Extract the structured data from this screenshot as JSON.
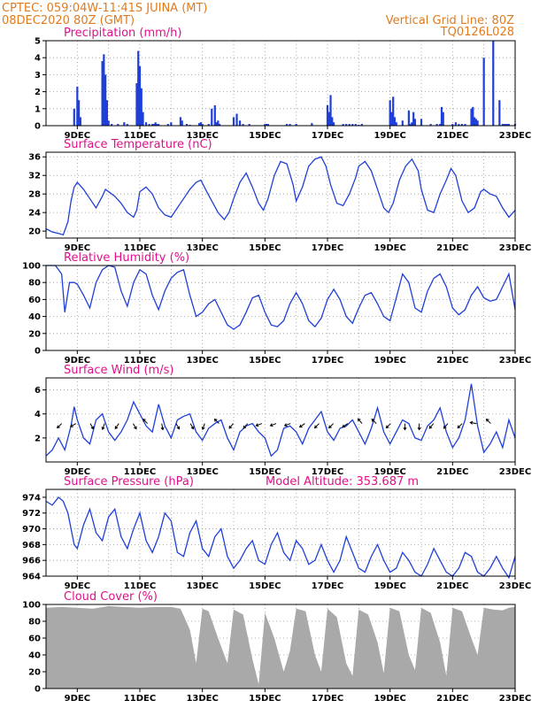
{
  "header": {
    "line1": "CPTEC:    059:04W-11:41S   JUINA (MT)",
    "line2": "08DEC2020  80Z (GMT)",
    "grid_note": "Vertical Grid Line: 80Z",
    "code": "TQ0126L028",
    "altitude": "Model Altitude:  353.687 m"
  },
  "colors": {
    "header": "#e07b1e",
    "title": "#e0108a",
    "line": "#1f3fd8",
    "bar": "#1f3fd8",
    "cloud": "#a9a9a9"
  },
  "chart_data": [
    {
      "type": "bar",
      "title": "Precipitation  (mm/h)",
      "x_ticks": [
        "9DEC",
        "11DEC",
        "13DEC",
        "15DEC",
        "17DEC",
        "19DEC",
        "21DEC",
        "23DEC"
      ],
      "x_range_days": [
        0,
        15
      ],
      "ylim": [
        0,
        5
      ],
      "y_ticks": [
        "0",
        "1",
        "2",
        "3",
        "4",
        "5"
      ],
      "x": [
        0.9,
        1.0,
        1.05,
        1.1,
        1.8,
        1.85,
        1.9,
        1.95,
        2.0,
        2.1,
        2.3,
        2.5,
        2.6,
        2.9,
        2.95,
        3.0,
        3.05,
        3.1,
        3.2,
        3.3,
        3.4,
        3.45,
        3.5,
        3.55,
        3.6,
        3.9,
        4.0,
        4.3,
        4.35,
        4.5,
        4.6,
        4.9,
        4.95,
        5.0,
        5.2,
        5.3,
        5.4,
        5.45,
        5.5,
        5.55,
        6.0,
        6.1,
        6.2,
        6.3,
        6.5,
        7.0,
        7.05,
        7.1,
        7.7,
        7.8,
        8.0,
        8.5,
        9.0,
        9.05,
        9.1,
        9.15,
        9.2,
        9.5,
        9.6,
        9.7,
        9.8,
        9.9,
        10.0,
        10.1,
        11.0,
        11.05,
        11.1,
        11.15,
        11.2,
        11.4,
        11.6,
        11.65,
        11.7,
        11.75,
        11.8,
        12.0,
        12.3,
        12.5,
        12.6,
        12.65,
        12.7,
        13.0,
        13.1,
        13.2,
        13.3,
        13.4,
        13.6,
        13.65,
        13.7,
        13.75,
        13.8,
        14.0,
        14.3,
        14.5,
        14.6,
        14.65,
        14.7,
        14.75,
        14.8,
        15.0
      ],
      "values": [
        1.0,
        2.3,
        1.5,
        0.5,
        3.8,
        4.2,
        3.0,
        1.5,
        0.3,
        0.1,
        0.1,
        0.2,
        0.1,
        2.5,
        4.4,
        3.5,
        2.2,
        0.8,
        0.2,
        0.1,
        0.1,
        0.1,
        0.2,
        0.1,
        0.1,
        0.1,
        0.2,
        0.5,
        0.3,
        0.1,
        0.05,
        0.15,
        0.2,
        0.1,
        0.1,
        1.0,
        1.2,
        0.2,
        0.3,
        0.1,
        0.5,
        0.7,
        0.3,
        0.1,
        0.1,
        0.1,
        0.1,
        0.1,
        0.1,
        0.1,
        0.1,
        0.15,
        1.2,
        0.8,
        1.8,
        0.5,
        0.2,
        0.1,
        0.1,
        0.1,
        0.1,
        0.1,
        0.05,
        0.1,
        1.5,
        0.8,
        1.7,
        0.5,
        0.2,
        0.3,
        0.9,
        0.1,
        0.2,
        0.8,
        0.4,
        0.4,
        0.1,
        0.1,
        0.1,
        1.1,
        0.8,
        0.1,
        0.2,
        0.1,
        0.1,
        0.1,
        1.0,
        1.1,
        0.5,
        0.4,
        0.3,
        4.0,
        5.0,
        1.5,
        0.1,
        0.1,
        0.1,
        0.1,
        0.1,
        0.1
      ]
    },
    {
      "type": "line",
      "title": "Surface Temperature  (nC)",
      "x_ticks": [
        "9DEC",
        "11DEC",
        "13DEC",
        "15DEC",
        "17DEC",
        "19DEC",
        "21DEC",
        "23DEC"
      ],
      "x_range_days": [
        0,
        15
      ],
      "ylim": [
        18.5,
        37
      ],
      "y_ticks": [
        "20",
        "24",
        "28",
        "32",
        "36"
      ],
      "x": [
        0,
        0.2,
        0.4,
        0.55,
        0.7,
        0.8,
        0.9,
        1.0,
        1.2,
        1.4,
        1.6,
        1.8,
        1.9,
        2.0,
        2.2,
        2.4,
        2.6,
        2.8,
        2.9,
        3.0,
        3.2,
        3.4,
        3.6,
        3.8,
        4.0,
        4.2,
        4.4,
        4.6,
        4.8,
        4.95,
        5.1,
        5.3,
        5.5,
        5.7,
        5.85,
        6.0,
        6.2,
        6.4,
        6.5,
        6.6,
        6.8,
        6.95,
        7.1,
        7.3,
        7.5,
        7.7,
        7.9,
        8.0,
        8.2,
        8.4,
        8.6,
        8.8,
        8.95,
        9.1,
        9.3,
        9.5,
        9.7,
        9.9,
        10.0,
        10.2,
        10.4,
        10.6,
        10.8,
        10.95,
        11.1,
        11.3,
        11.5,
        11.7,
        11.9,
        12.0,
        12.2,
        12.4,
        12.6,
        12.8,
        12.95,
        13.1,
        13.3,
        13.5,
        13.7,
        13.9,
        14.0,
        14.2,
        14.4,
        14.6,
        14.8,
        15.0
      ],
      "values": [
        20.5,
        19.8,
        19.5,
        19.2,
        22.0,
        26.5,
        29.5,
        30.5,
        29.0,
        27.0,
        25.0,
        27.5,
        29.0,
        28.5,
        27.5,
        26.0,
        24.0,
        23.0,
        24.5,
        28.5,
        29.5,
        28.0,
        25.0,
        23.5,
        23.0,
        25.0,
        27.0,
        29.0,
        30.5,
        31.0,
        29.0,
        26.5,
        24.0,
        22.5,
        24.0,
        27.0,
        30.5,
        32.5,
        31.0,
        29.5,
        26.0,
        24.5,
        27.0,
        32.0,
        35.0,
        34.5,
        30.0,
        26.5,
        29.5,
        34.0,
        35.5,
        36.0,
        34.0,
        30.0,
        26.0,
        25.5,
        28.0,
        31.5,
        34.0,
        35.0,
        33.0,
        29.0,
        25.0,
        24.0,
        26.0,
        31.0,
        34.0,
        35.5,
        33.0,
        29.0,
        24.5,
        24.0,
        28.0,
        31.0,
        33.5,
        32.0,
        26.5,
        24.0,
        25.0,
        28.5,
        29.0,
        28.0,
        27.5,
        25.0,
        23.0,
        24.5
      ]
    },
    {
      "type": "line",
      "title": "Relative Humidity  (%)",
      "x_ticks": [
        "9DEC",
        "11DEC",
        "13DEC",
        "15DEC",
        "17DEC",
        "19DEC",
        "21DEC",
        "23DEC"
      ],
      "x_range_days": [
        0,
        15
      ],
      "ylim": [
        0,
        100
      ],
      "y_ticks": [
        "0",
        "20",
        "40",
        "60",
        "80",
        "100"
      ],
      "x": [
        0,
        0.3,
        0.5,
        0.6,
        0.75,
        0.9,
        1.0,
        1.2,
        1.4,
        1.6,
        1.8,
        2.0,
        2.2,
        2.4,
        2.6,
        2.8,
        3.0,
        3.2,
        3.4,
        3.6,
        3.8,
        4.0,
        4.2,
        4.4,
        4.6,
        4.8,
        5.0,
        5.2,
        5.4,
        5.6,
        5.8,
        6.0,
        6.2,
        6.4,
        6.6,
        6.8,
        7.0,
        7.2,
        7.4,
        7.6,
        7.8,
        8.0,
        8.2,
        8.4,
        8.6,
        8.8,
        9.0,
        9.2,
        9.4,
        9.6,
        9.8,
        10.0,
        10.2,
        10.4,
        10.6,
        10.8,
        11.0,
        11.2,
        11.4,
        11.6,
        11.8,
        12.0,
        12.2,
        12.4,
        12.6,
        12.8,
        13.0,
        13.2,
        13.4,
        13.6,
        13.8,
        14.0,
        14.2,
        14.4,
        14.6,
        14.8,
        15.0
      ],
      "values": [
        100,
        100,
        90,
        45,
        80,
        80,
        78,
        65,
        50,
        80,
        95,
        100,
        98,
        70,
        52,
        80,
        95,
        90,
        65,
        48,
        70,
        85,
        92,
        95,
        65,
        40,
        45,
        55,
        60,
        45,
        30,
        25,
        30,
        45,
        62,
        65,
        45,
        30,
        28,
        35,
        55,
        68,
        55,
        35,
        28,
        38,
        60,
        72,
        60,
        40,
        32,
        50,
        65,
        68,
        55,
        40,
        35,
        62,
        90,
        80,
        50,
        45,
        70,
        85,
        90,
        75,
        50,
        42,
        48,
        65,
        75,
        62,
        58,
        60,
        75,
        90,
        48
      ]
    },
    {
      "type": "line",
      "title": "Surface  Wind  (m/s)",
      "x_ticks": [
        "9DEC",
        "11DEC",
        "13DEC",
        "15DEC",
        "17DEC",
        "19DEC",
        "21DEC",
        "23DEC"
      ],
      "x_range_days": [
        0,
        15
      ],
      "ylim": [
        0,
        7
      ],
      "y_ticks": [
        "2",
        "4",
        "6"
      ],
      "x": [
        0,
        0.2,
        0.4,
        0.6,
        0.8,
        0.9,
        1.0,
        1.2,
        1.4,
        1.6,
        1.8,
        2.0,
        2.2,
        2.4,
        2.6,
        2.8,
        3.0,
        3.2,
        3.4,
        3.6,
        3.8,
        4.0,
        4.2,
        4.4,
        4.6,
        4.8,
        5.0,
        5.2,
        5.4,
        5.6,
        5.8,
        6.0,
        6.2,
        6.4,
        6.6,
        6.8,
        7.0,
        7.2,
        7.4,
        7.6,
        7.8,
        8.0,
        8.2,
        8.4,
        8.6,
        8.8,
        9.0,
        9.2,
        9.4,
        9.6,
        9.8,
        10.0,
        10.2,
        10.4,
        10.6,
        10.8,
        11.0,
        11.2,
        11.4,
        11.6,
        11.8,
        12.0,
        12.2,
        12.4,
        12.6,
        12.8,
        13.0,
        13.2,
        13.4,
        13.6,
        13.8,
        14.0,
        14.2,
        14.4,
        14.6,
        14.8,
        15.0
      ],
      "values": [
        0.5,
        1.0,
        2.0,
        1.0,
        3.0,
        4.6,
        3.5,
        2.0,
        1.5,
        3.5,
        4.0,
        2.5,
        1.8,
        2.5,
        3.5,
        5.0,
        4.0,
        3.0,
        2.5,
        4.8,
        3.0,
        2.0,
        3.5,
        3.8,
        4.0,
        2.5,
        1.8,
        2.8,
        3.2,
        3.5,
        2.0,
        1.0,
        2.5,
        3.0,
        3.2,
        2.5,
        2.0,
        0.5,
        1.0,
        2.8,
        3.0,
        2.5,
        1.5,
        2.8,
        3.5,
        4.2,
        2.5,
        1.8,
        2.8,
        3.0,
        3.5,
        2.5,
        1.5,
        2.8,
        4.5,
        2.5,
        1.5,
        2.5,
        3.5,
        3.2,
        2.0,
        1.8,
        3.0,
        3.5,
        4.5,
        2.5,
        1.2,
        2.0,
        3.5,
        6.5,
        3.0,
        0.8,
        1.5,
        2.5,
        1.2,
        3.5,
        2.0
      ],
      "arrows_dir_deg": [
        225,
        210,
        300,
        250,
        235,
        300,
        135,
        280,
        300,
        300,
        250,
        135,
        230,
        230,
        200,
        200,
        200,
        215,
        225,
        225,
        215,
        130,
        135,
        225,
        270,
        270,
        230,
        230,
        225,
        170,
        135
      ]
    },
    {
      "type": "line",
      "title": "Surface  Pressure  (hPa)",
      "x_ticks": [
        "9DEC",
        "11DEC",
        "13DEC",
        "15DEC",
        "17DEC",
        "19DEC",
        "21DEC",
        "23DEC"
      ],
      "x_range_days": [
        0,
        15
      ],
      "ylim": [
        964,
        975
      ],
      "y_ticks": [
        "964",
        "966",
        "968",
        "970",
        "972",
        "974"
      ],
      "x": [
        0,
        0.2,
        0.4,
        0.55,
        0.7,
        0.9,
        1.0,
        1.2,
        1.4,
        1.6,
        1.8,
        2.0,
        2.2,
        2.4,
        2.6,
        2.8,
        3.0,
        3.2,
        3.4,
        3.6,
        3.8,
        4.0,
        4.2,
        4.4,
        4.6,
        4.8,
        5.0,
        5.2,
        5.4,
        5.6,
        5.8,
        6.0,
        6.2,
        6.4,
        6.6,
        6.8,
        7.0,
        7.2,
        7.4,
        7.6,
        7.8,
        8.0,
        8.2,
        8.4,
        8.6,
        8.8,
        9.0,
        9.2,
        9.4,
        9.6,
        9.8,
        10.0,
        10.2,
        10.4,
        10.6,
        10.8,
        11.0,
        11.2,
        11.4,
        11.6,
        11.8,
        12.0,
        12.2,
        12.4,
        12.6,
        12.8,
        13.0,
        13.2,
        13.4,
        13.6,
        13.8,
        14.0,
        14.2,
        14.4,
        14.6,
        14.8,
        15.0
      ],
      "values": [
        973.5,
        973.0,
        974.0,
        973.5,
        972.0,
        968.0,
        967.5,
        970.5,
        972.5,
        969.5,
        968.5,
        971.5,
        972.5,
        969.0,
        967.5,
        970.0,
        972.0,
        968.5,
        967.0,
        969.0,
        972.0,
        971.0,
        967.0,
        966.5,
        969.5,
        971.0,
        967.5,
        966.5,
        969.0,
        970.0,
        966.5,
        965.0,
        966.0,
        967.5,
        968.5,
        966.0,
        965.5,
        968.0,
        969.5,
        967.0,
        966.0,
        968.5,
        967.5,
        965.5,
        966.0,
        968.0,
        966.0,
        964.5,
        966.0,
        969.0,
        967.0,
        965.0,
        964.5,
        966.5,
        968.0,
        966.0,
        964.5,
        965.0,
        967.0,
        966.0,
        964.5,
        964.0,
        965.5,
        967.5,
        966.0,
        964.5,
        964.0,
        965.0,
        967.0,
        966.5,
        964.5,
        964.0,
        965.0,
        966.5,
        965.0,
        963.8,
        966.5
      ]
    },
    {
      "type": "area",
      "title": "Cloud  Cover  (%)",
      "x_ticks": [
        "9DEC",
        "11DEC",
        "13DEC",
        "15DEC",
        "17DEC",
        "19DEC",
        "21DEC",
        "23DEC"
      ],
      "x_range_days": [
        0,
        15
      ],
      "ylim": [
        0,
        100
      ],
      "y_ticks": [
        "0",
        "20",
        "40",
        "60",
        "80",
        "100"
      ],
      "x": [
        0,
        0.5,
        1.0,
        1.5,
        2.0,
        2.5,
        3.0,
        3.5,
        4.0,
        4.3,
        4.6,
        4.8,
        5.0,
        5.2,
        5.5,
        5.8,
        6.0,
        6.3,
        6.6,
        6.8,
        7.0,
        7.3,
        7.6,
        7.8,
        8.0,
        8.3,
        8.6,
        8.8,
        9.0,
        9.3,
        9.6,
        9.8,
        10.0,
        10.3,
        10.6,
        10.8,
        11.0,
        11.3,
        11.6,
        11.8,
        12.0,
        12.3,
        12.6,
        12.8,
        13.0,
        13.3,
        13.6,
        13.8,
        14.0,
        14.3,
        14.6,
        14.8,
        15.0
      ],
      "values": [
        96,
        97,
        96,
        95,
        98,
        97,
        96,
        97,
        97,
        95,
        70,
        30,
        95,
        92,
        60,
        30,
        94,
        88,
        35,
        5,
        90,
        60,
        20,
        45,
        95,
        92,
        40,
        20,
        95,
        85,
        30,
        15,
        94,
        88,
        55,
        18,
        96,
        92,
        40,
        22,
        96,
        90,
        55,
        15,
        96,
        92,
        60,
        40,
        96,
        94,
        93,
        96,
        97
      ]
    }
  ]
}
